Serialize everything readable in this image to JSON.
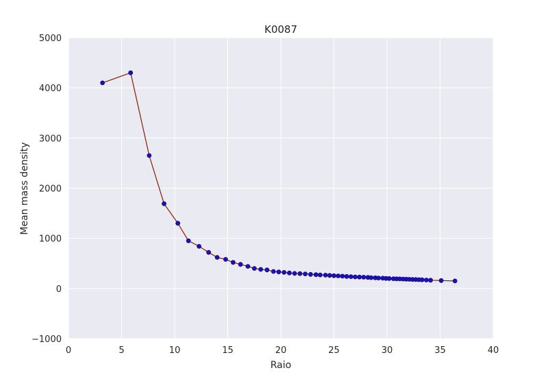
{
  "chart_data": {
    "type": "line",
    "title": "K0087",
    "xlabel": "Raio",
    "ylabel": "Mean mass density",
    "xlim": [
      0,
      40
    ],
    "ylim": [
      -1000,
      5000
    ],
    "xticks": [
      0,
      5,
      10,
      15,
      20,
      25,
      30,
      35,
      40
    ],
    "yticks": [
      -1000,
      0,
      1000,
      2000,
      3000,
      4000,
      5000
    ],
    "xtick_labels": [
      "0",
      "5",
      "10",
      "15",
      "20",
      "25",
      "30",
      "35",
      "40"
    ],
    "ytick_labels": [
      "−1000",
      "0",
      "1000",
      "2000",
      "3000",
      "4000",
      "5000"
    ],
    "grid": true,
    "colors": {
      "background": "#eaeaf2",
      "grid": "#ffffff",
      "line": "#8b1a00",
      "marker": "#1a0fc8",
      "marker_edge": "#1a1060"
    },
    "series": [
      {
        "x": [
          3.2,
          5.85,
          7.6,
          9.0,
          10.3,
          11.3,
          12.3,
          13.2,
          14.0,
          14.8,
          15.5,
          16.2,
          16.9,
          17.5,
          18.1,
          18.7,
          19.3,
          19.8,
          20.3,
          20.8,
          21.3,
          21.8,
          22.3,
          22.8,
          23.3,
          23.7,
          24.2,
          24.6,
          25.0,
          25.4,
          25.8,
          26.2,
          26.6,
          27.0,
          27.4,
          27.8,
          28.2,
          28.5,
          28.9,
          29.2,
          29.6,
          29.9,
          30.2,
          30.6,
          30.9,
          31.2,
          31.5,
          31.8,
          32.1,
          32.4,
          32.7,
          33.0,
          33.3,
          33.7,
          34.1,
          35.1,
          36.4
        ],
        "y": [
          4100,
          4300,
          2650,
          1690,
          1300,
          950,
          840,
          720,
          620,
          580,
          520,
          480,
          440,
          400,
          380,
          370,
          340,
          330,
          320,
          310,
          300,
          295,
          290,
          280,
          275,
          270,
          265,
          260,
          255,
          250,
          245,
          240,
          235,
          230,
          228,
          225,
          220,
          215,
          212,
          208,
          205,
          200,
          198,
          195,
          192,
          190,
          188,
          185,
          182,
          180,
          178,
          175,
          172,
          168,
          165,
          158,
          150
        ]
      }
    ]
  }
}
